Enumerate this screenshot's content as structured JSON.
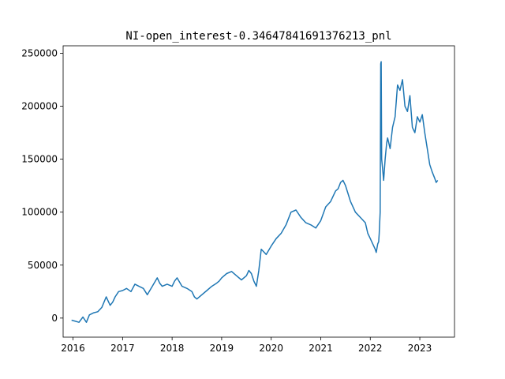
{
  "chart_data": {
    "type": "line",
    "title": "NI-open_interest-0.34647841691376213_pnl",
    "xlabel": "",
    "ylabel": "",
    "xlim": [
      2015.8,
      2023.7
    ],
    "ylim": [
      -18000,
      257000
    ],
    "grid": false,
    "x_ticks": [
      2016,
      2017,
      2018,
      2019,
      2020,
      2021,
      2022,
      2023
    ],
    "x_tick_labels": [
      "2016",
      "2017",
      "2018",
      "2019",
      "2020",
      "2021",
      "2022",
      "2023"
    ],
    "y_ticks": [
      0,
      50000,
      100000,
      150000,
      200000,
      250000
    ],
    "y_tick_labels": [
      "0",
      "50000",
      "100000",
      "150000",
      "200000",
      "250000"
    ],
    "series": [
      {
        "color": "#1f77b4",
        "x": [
          2015.97,
          2016.05,
          2016.12,
          2016.2,
          2016.27,
          2016.33,
          2016.42,
          2016.5,
          2016.58,
          2016.67,
          2016.75,
          2016.8,
          2016.85,
          2016.92,
          2017.0,
          2017.08,
          2017.17,
          2017.25,
          2017.33,
          2017.42,
          2017.5,
          2017.6,
          2017.7,
          2017.75,
          2017.8,
          2017.9,
          2018.0,
          2018.05,
          2018.1,
          2018.2,
          2018.3,
          2018.4,
          2018.45,
          2018.5,
          2018.6,
          2018.7,
          2018.8,
          2018.9,
          2018.95,
          2019.0,
          2019.1,
          2019.2,
          2019.3,
          2019.4,
          2019.5,
          2019.55,
          2019.6,
          2019.65,
          2019.7,
          2019.75,
          2019.8,
          2019.9,
          2020.0,
          2020.1,
          2020.2,
          2020.3,
          2020.4,
          2020.5,
          2020.6,
          2020.7,
          2020.8,
          2020.9,
          2021.0,
          2021.1,
          2021.2,
          2021.3,
          2021.35,
          2021.4,
          2021.45,
          2021.5,
          2021.6,
          2021.7,
          2021.8,
          2021.9,
          2021.95,
          2022.0,
          2022.05,
          2022.1,
          2022.12,
          2022.15,
          2022.17,
          2022.18,
          2022.2,
          2022.21,
          2022.22,
          2022.23,
          2022.25,
          2022.27,
          2022.3,
          2022.33,
          2022.35,
          2022.4,
          2022.45,
          2022.5,
          2022.55,
          2022.6,
          2022.65,
          2022.7,
          2022.75,
          2022.8,
          2022.85,
          2022.9,
          2022.95,
          2023.0,
          2023.05,
          2023.1,
          2023.15,
          2023.2,
          2023.25,
          2023.3,
          2023.33,
          2023.36
        ],
        "y": [
          -2000,
          -3000,
          -4000,
          1000,
          -4000,
          3000,
          5000,
          6000,
          10000,
          20000,
          12000,
          15000,
          20000,
          25000,
          26000,
          28000,
          25000,
          32000,
          30000,
          28000,
          22000,
          30000,
          38000,
          33000,
          30000,
          32000,
          30000,
          35000,
          38000,
          30000,
          28000,
          25000,
          20000,
          18000,
          22000,
          26000,
          30000,
          33000,
          35000,
          38000,
          42000,
          44000,
          40000,
          36000,
          40000,
          45000,
          42000,
          35000,
          30000,
          45000,
          65000,
          60000,
          68000,
          75000,
          80000,
          88000,
          100000,
          102000,
          95000,
          90000,
          88000,
          85000,
          92000,
          105000,
          110000,
          120000,
          122000,
          128000,
          130000,
          125000,
          110000,
          100000,
          95000,
          90000,
          80000,
          75000,
          70000,
          65000,
          62000,
          70000,
          72000,
          80000,
          100000,
          240000,
          242000,
          150000,
          140000,
          130000,
          150000,
          165000,
          170000,
          160000,
          180000,
          190000,
          220000,
          215000,
          225000,
          200000,
          195000,
          210000,
          180000,
          175000,
          190000,
          185000,
          192000,
          175000,
          160000,
          145000,
          138000,
          132000,
          128000,
          130000
        ]
      }
    ]
  }
}
